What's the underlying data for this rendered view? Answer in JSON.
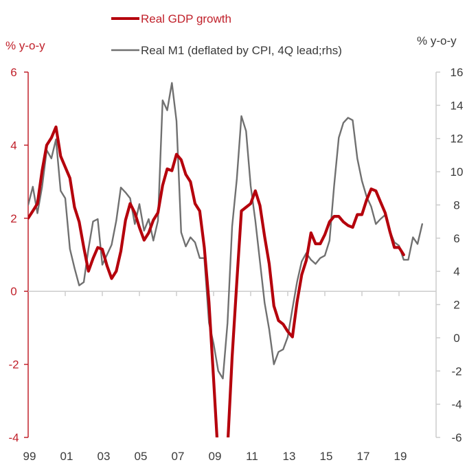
{
  "chart_data": {
    "type": "line",
    "title": "",
    "legend": {
      "placement": "top",
      "entries": [
        {
          "name": "Real GDP growth",
          "color": "#b5000c"
        },
        {
          "name": "Real M1 (deflated by CPI, 4Q lead;rhs)",
          "color": "#707070"
        }
      ]
    },
    "left_axis": {
      "label": "% y-o-y",
      "range": [
        -4,
        6
      ],
      "ticks": [
        "-4",
        "-2",
        "0",
        "2",
        "4",
        "6"
      ],
      "color": "#c0202a"
    },
    "right_axis": {
      "label": "% y-o-y",
      "range": [
        -6,
        16
      ],
      "ticks": [
        "-6",
        "-4",
        "-2",
        "0",
        "2",
        "4",
        "6",
        "8",
        "10",
        "12",
        "14",
        "16"
      ],
      "color": "#333333"
    },
    "x_axis": {
      "start": "1999Q1",
      "frequency": "quarterly",
      "range_years": [
        1999,
        2021
      ],
      "tick_labels": [
        "99",
        "01",
        "03",
        "05",
        "07",
        "09",
        "11",
        "13",
        "15",
        "17",
        "19"
      ]
    },
    "grid": false,
    "series": [
      {
        "name": "Real GDP growth",
        "axis": "left",
        "start": "1999Q1",
        "values": [
          2.0,
          2.2,
          2.4,
          3.3,
          4.0,
          4.2,
          4.5,
          3.7,
          3.4,
          3.1,
          2.3,
          1.9,
          1.2,
          0.55,
          0.9,
          1.2,
          1.15,
          0.7,
          0.35,
          0.55,
          1.1,
          1.95,
          2.4,
          2.15,
          1.75,
          1.4,
          1.6,
          1.95,
          2.15,
          2.9,
          3.35,
          3.3,
          3.75,
          3.6,
          3.2,
          3.0,
          2.4,
          2.2,
          1.2,
          -0.3,
          -2.4,
          -4.6,
          -5.4,
          -4.3,
          -1.8,
          0.25,
          2.2,
          2.3,
          2.4,
          2.75,
          2.35,
          1.5,
          0.75,
          -0.4,
          -0.8,
          -0.9,
          -1.1,
          -1.25,
          -0.3,
          0.45,
          0.85,
          1.6,
          1.3,
          1.3,
          1.55,
          1.9,
          2.05,
          2.05,
          1.9,
          1.8,
          1.75,
          2.1,
          2.1,
          2.5,
          2.8,
          2.75,
          2.45,
          2.15,
          1.65,
          1.2,
          1.2,
          1.0
        ]
      },
      {
        "name": "Real M1 (deflated by CPI, 4Q lead;rhs)",
        "axis": "right",
        "start": "1999Q1",
        "values": [
          8.0,
          9.1,
          7.5,
          9.1,
          11.3,
          10.8,
          11.95,
          8.85,
          8.4,
          5.35,
          4.2,
          3.15,
          3.35,
          5.35,
          7.0,
          7.15,
          4.4,
          5.0,
          5.6,
          7.05,
          9.05,
          8.75,
          8.4,
          6.85,
          8.05,
          6.45,
          7.15,
          5.85,
          7.05,
          14.3,
          13.7,
          15.35,
          13.05,
          6.35,
          5.5,
          6.05,
          5.75,
          4.8,
          4.8,
          0.9,
          -0.35,
          -2.0,
          -2.45,
          0.9,
          6.7,
          9.55,
          13.35,
          12.45,
          9.15,
          7.05,
          4.6,
          2.1,
          0.5,
          -1.6,
          -0.85,
          -0.7,
          0.05,
          1.75,
          3.35,
          4.6,
          5.1,
          4.7,
          4.45,
          4.8,
          4.95,
          5.85,
          9.15,
          12.05,
          12.95,
          13.25,
          13.1,
          10.8,
          9.45,
          8.5,
          7.9,
          6.85,
          7.15,
          7.4,
          6.45,
          5.75,
          5.55,
          4.7,
          4.7,
          6.05,
          5.65,
          6.85
        ]
      }
    ]
  }
}
